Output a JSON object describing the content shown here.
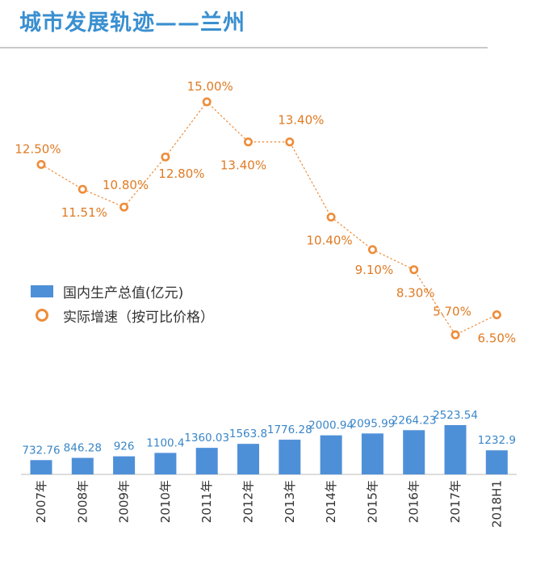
{
  "page": {
    "title": "城市发展轨迹——兰州"
  },
  "chart_data": {
    "type": "bar+line",
    "categories": [
      "2007年",
      "2008年",
      "2009年",
      "2010年",
      "2011年",
      "2012年",
      "2013年",
      "2014年",
      "2015年",
      "2016年",
      "2017年",
      "2018H1"
    ],
    "series": [
      {
        "name": "国内生产总值(亿元)",
        "type": "bar",
        "values": [
          732.76,
          846.28,
          926,
          1100.4,
          1360.03,
          1563.8,
          1776.28,
          2000.94,
          2095.99,
          2264.23,
          2523.54,
          1232.9
        ],
        "labels": [
          "732.76",
          "846.28",
          "926",
          "1100.4",
          "1360.03",
          "1563.8",
          "1776.28",
          "2000.94",
          "2095.99",
          "2264.23",
          "2523.54",
          "1232.9"
        ]
      },
      {
        "name": "实际增速（按可比价格）",
        "type": "line",
        "values": [
          12.5,
          11.51,
          10.8,
          12.8,
          15.0,
          13.4,
          13.4,
          10.4,
          9.1,
          8.3,
          5.7,
          6.5
        ],
        "labels": [
          "12.50%",
          "11.51%",
          "10.80%",
          "12.80%",
          "15.00%",
          "13.40%",
          "13.40%",
          "10.40%",
          "9.10%",
          "8.30%",
          "5.70%",
          "6.50%"
        ]
      }
    ],
    "legend_position": "middle-left",
    "grid": false,
    "colors": {
      "bar": "#4e90d8",
      "line": "#ee8c39",
      "bar_label": "#3a86c8",
      "line_label": "#e07b24"
    }
  }
}
